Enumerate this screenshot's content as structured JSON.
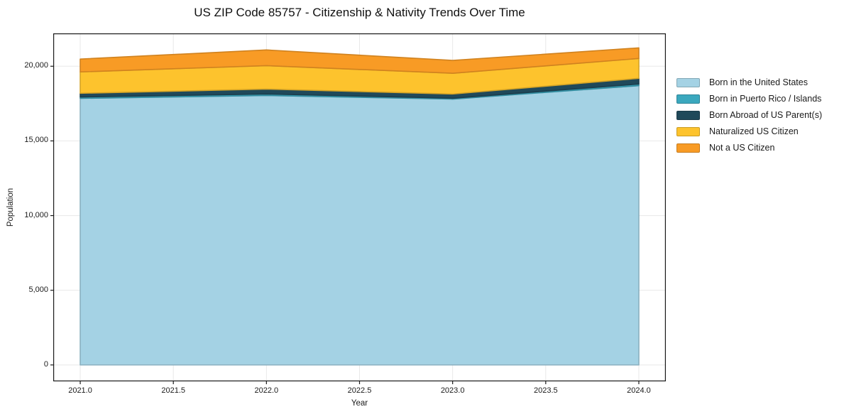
{
  "chart_data": {
    "type": "area",
    "stacked": true,
    "title": "US ZIP Code 85757 - Citizenship & Nativity Trends Over Time",
    "xlabel": "Year",
    "ylabel": "Population",
    "x": [
      2021,
      2022,
      2023,
      2024
    ],
    "series": [
      {
        "name": "Born in the United States",
        "color": "#a4d2e4",
        "values": [
          17850,
          18040,
          17800,
          18700
        ]
      },
      {
        "name": "Born in Puerto Rico / Islands",
        "color": "#3ba8be",
        "values": [
          90,
          100,
          60,
          110
        ]
      },
      {
        "name": "Born Abroad of US Parent(s)",
        "color": "#20495a",
        "values": [
          250,
          330,
          280,
          380
        ]
      },
      {
        "name": "Naturalized US Citizen",
        "color": "#fdc32d",
        "values": [
          1430,
          1570,
          1390,
          1330
        ]
      },
      {
        "name": "Not a US Citizen",
        "color": "#f89b25",
        "values": [
          860,
          1050,
          860,
          710
        ]
      }
    ],
    "x_ticks": {
      "values": [
        2021.0,
        2021.5,
        2022.0,
        2022.5,
        2023.0,
        2023.5,
        2024.0
      ],
      "labels": [
        "2021.0",
        "2021.5",
        "2022.0",
        "2022.5",
        "2023.0",
        "2023.5",
        "2024.0"
      ]
    },
    "y_ticks": {
      "values": [
        0,
        5000,
        10000,
        15000,
        20000
      ],
      "labels": [
        "0",
        "5,000",
        "10,000",
        "15,000",
        "20,000"
      ]
    },
    "xlim": [
      2020.855,
      2024.145
    ],
    "ylim": [
      -1100,
      22200
    ],
    "grid": true,
    "grid_color": "#e8e8e8",
    "spine_color": "#1a1a1a",
    "text_color": "#1a1a1a",
    "legend_position": "right",
    "background": "#ffffff"
  }
}
